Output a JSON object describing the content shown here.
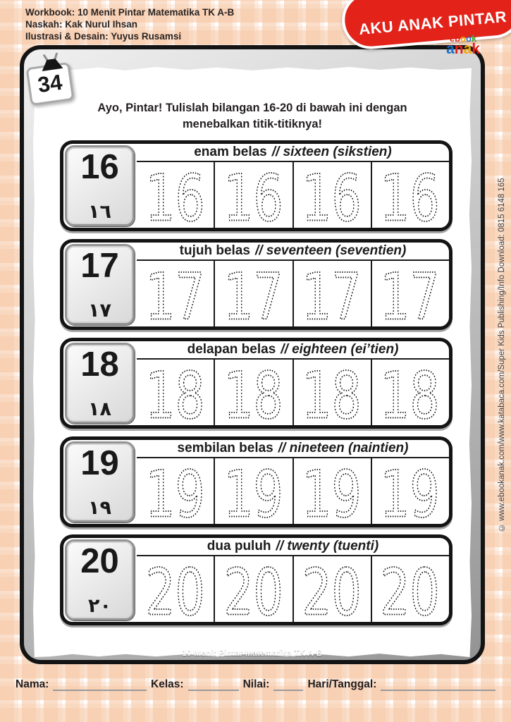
{
  "header": {
    "credits": [
      "Workbook: 10 Menit Pintar Matematika TK A-B",
      "Naskah: Kak Nurul Ihsan",
      "Ilustrasi & Desain: Yuyus Rusamsi"
    ],
    "badge_label": "AKU ANAK PINTAR",
    "logo": {
      "line1": "ebook",
      "line2": "anak"
    }
  },
  "page_number": "34",
  "instruction": "Ayo, Pintar! Tulislah bilangan 16-20 di bawah ini dengan menebalkan titik-titiknya!",
  "rows": [
    {
      "number": "16",
      "arabic_numeral": "١٦",
      "indonesian": "enam belas",
      "english": "// sixteen (sikstien)",
      "trace_text": "16",
      "trace_cells": 4
    },
    {
      "number": "17",
      "arabic_numeral": "١٧",
      "indonesian": "tujuh belas",
      "english": "// seventeen (seventien)",
      "trace_text": "17",
      "trace_cells": 4
    },
    {
      "number": "18",
      "arabic_numeral": "١٨",
      "indonesian": "delapan belas",
      "english": "// eighteen (ei’tien)",
      "trace_text": "18",
      "trace_cells": 4
    },
    {
      "number": "19",
      "arabic_numeral": "١٩",
      "indonesian": "sembilan belas",
      "english": "// nineteen (naintien)",
      "trace_text": "19",
      "trace_cells": 4
    },
    {
      "number": "20",
      "arabic_numeral": "٢٠",
      "indonesian": "dua puluh",
      "english": "// twenty (tuenti)",
      "trace_text": "20",
      "trace_cells": 4
    }
  ],
  "panel_footer": "10 Menit Pintar Matematika TK A-B",
  "side_credit": "© www.ebookanak.com/www.katabaca.com/Super Kids Publishing/Info Download: 0815 6148 165",
  "form": {
    "name_label": "Nama:",
    "class_label": "Kelas:",
    "score_label": "Nilai:",
    "date_label": "Hari/Tanggal:"
  },
  "colors": {
    "badge_red": "#e3231a",
    "gingham_peach": "#f7c9a8",
    "trace_dot": "#1a1a1a"
  }
}
